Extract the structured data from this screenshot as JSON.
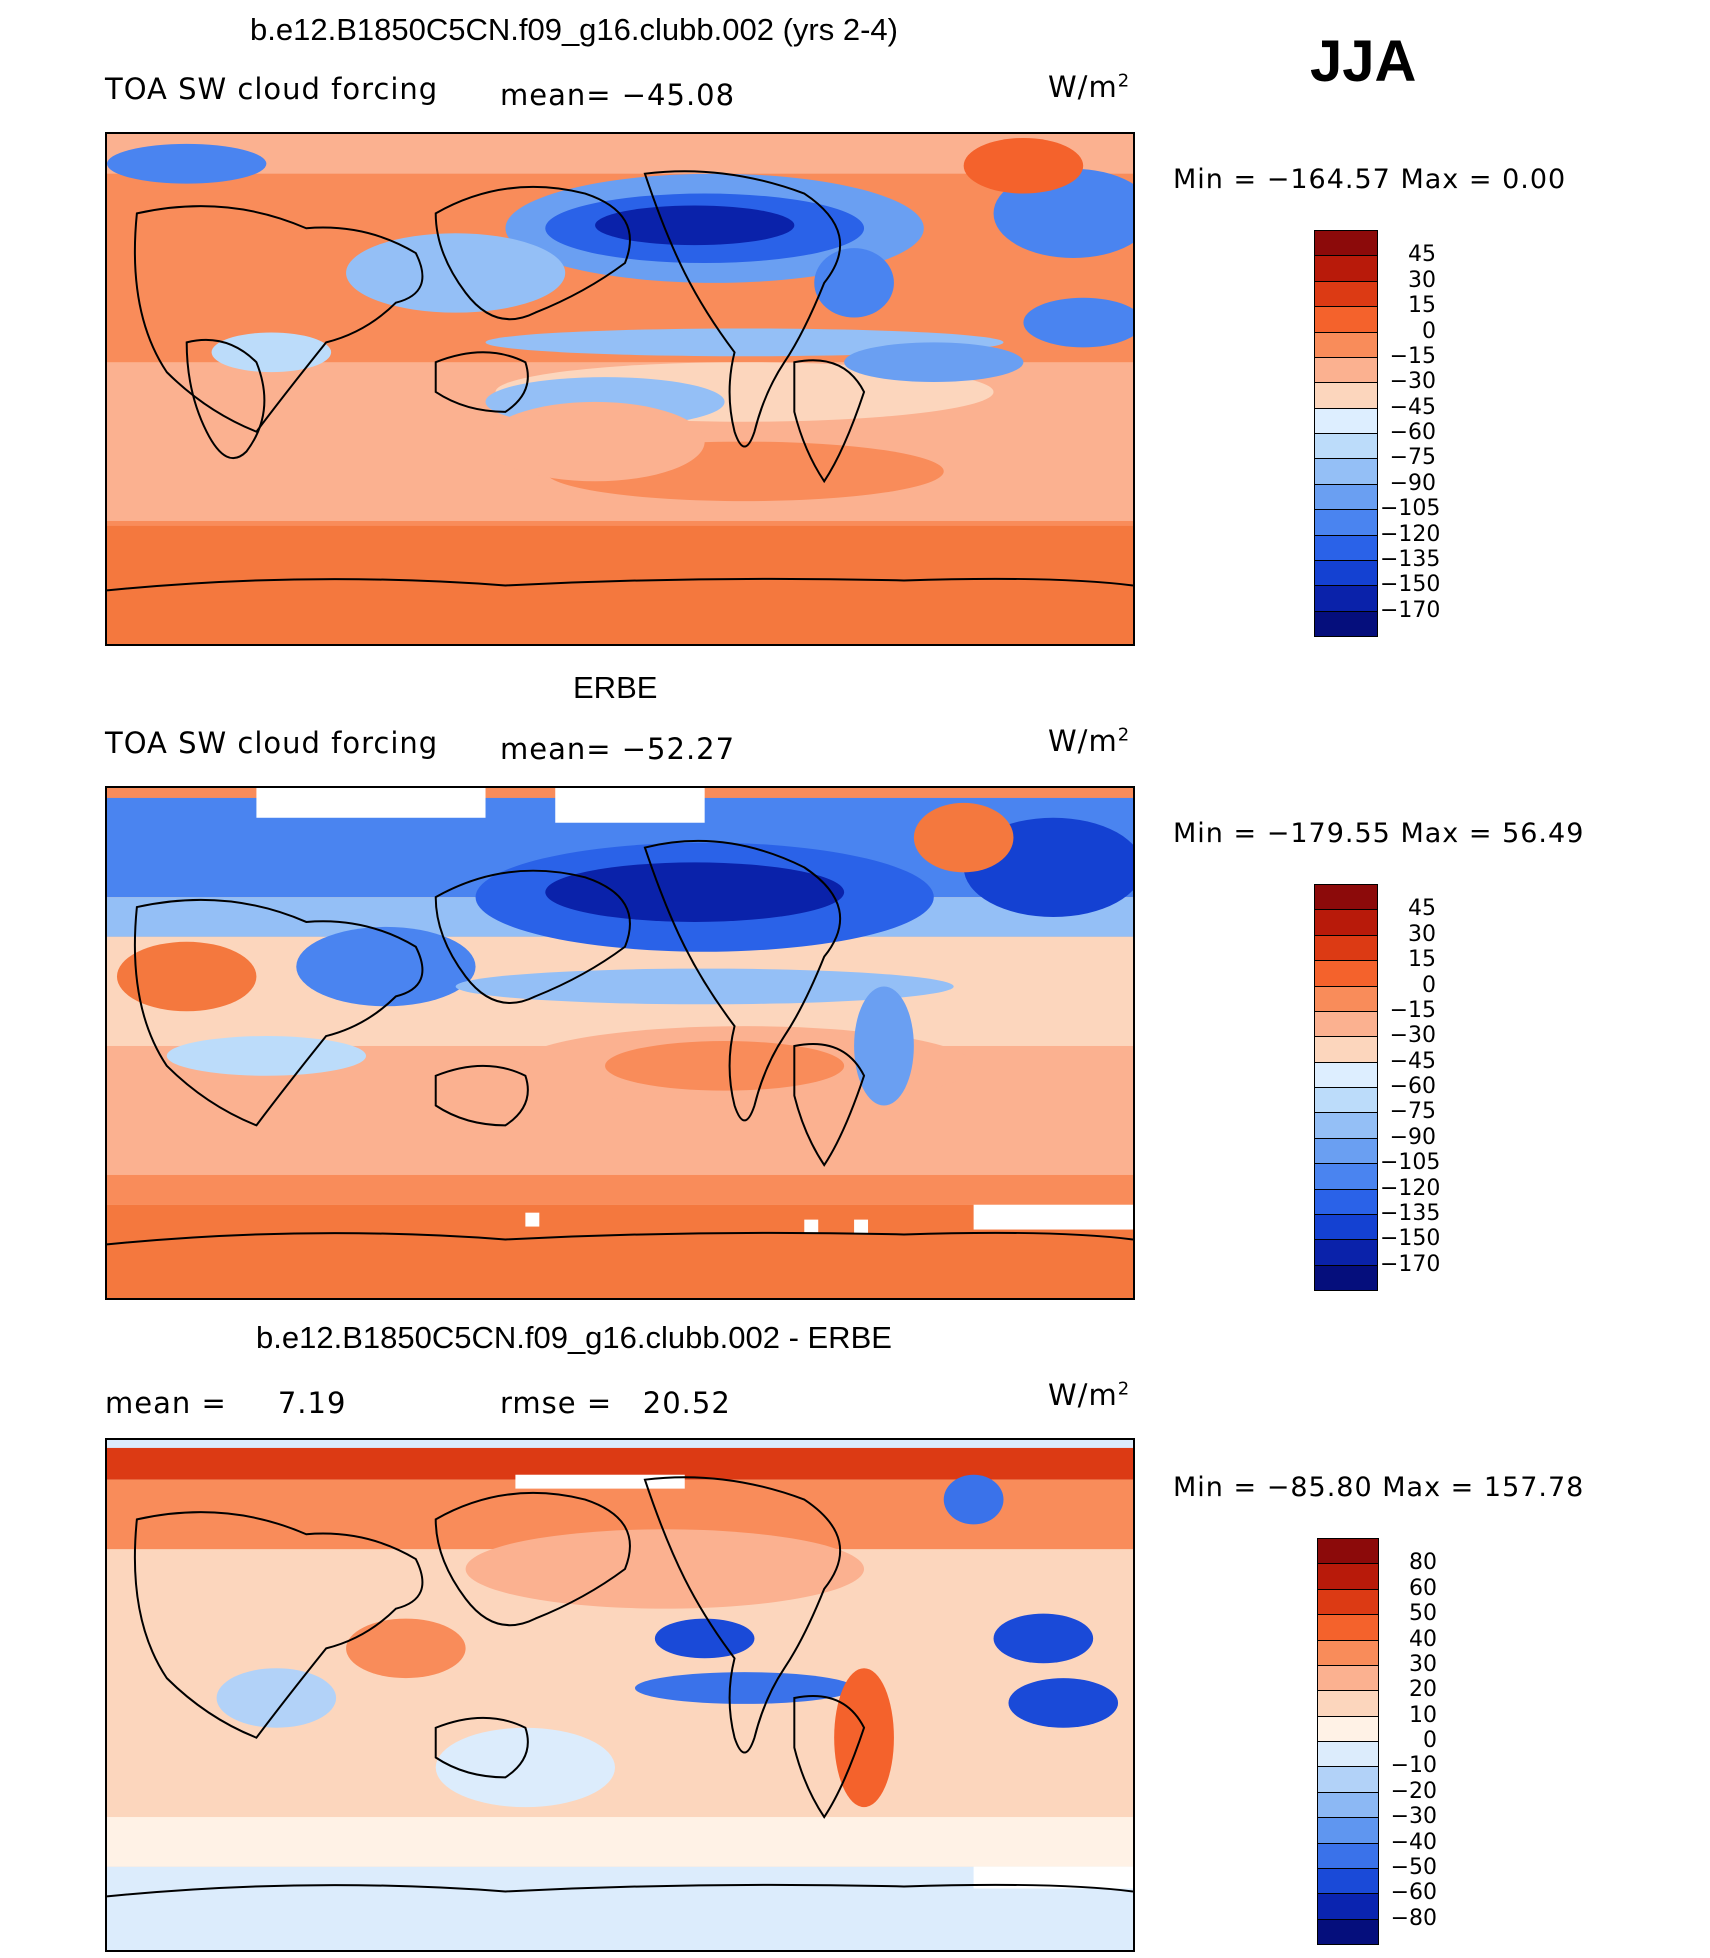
{
  "season": "JJA",
  "units_prefix": "W/m",
  "units_power": "2",
  "panels": [
    {
      "id": "model",
      "title": "b.e12.B1850C5CN.f09_g16.clubb.002 (yrs 2-4)",
      "left_label": "TOA SW cloud forcing",
      "center_label": "mean= −45.08",
      "min_label": "Min",
      "min_value": "−164.57",
      "max_label": "Max",
      "max_value": "0.00",
      "colorbar_colors": [
        "#8c0a0a",
        "#b81a0a",
        "#dc3a14",
        "#f4622c",
        "#f98c5a",
        "#fbb190",
        "#fcd6bd",
        "#ddeeff",
        "#bcdcfa",
        "#94bff6",
        "#6a9ff2",
        "#4a84f0",
        "#2a62e8",
        "#1441d2",
        "#0a22aa",
        "#050e7c"
      ],
      "colorbar_ticks": [
        "45",
        "30",
        "15",
        "0",
        "−15",
        "−30",
        "−45",
        "−60",
        "−75",
        "−90",
        "−105",
        "−120",
        "−135",
        "−150",
        "−170"
      ]
    },
    {
      "id": "obs",
      "title": "ERBE",
      "left_label": "TOA SW cloud forcing",
      "center_label": "mean= −52.27",
      "min_label": "Min",
      "min_value": "−179.55",
      "max_label": "Max",
      "max_value": "56.49",
      "colorbar_colors": [
        "#8c0a0a",
        "#b81a0a",
        "#dc3a14",
        "#f4622c",
        "#f98c5a",
        "#fbb190",
        "#fcd6bd",
        "#ddeeff",
        "#bcdcfa",
        "#94bff6",
        "#6a9ff2",
        "#4a84f0",
        "#2a62e8",
        "#1441d2",
        "#0a22aa",
        "#050e7c"
      ],
      "colorbar_ticks": [
        "45",
        "30",
        "15",
        "0",
        "−15",
        "−30",
        "−45",
        "−60",
        "−75",
        "−90",
        "−105",
        "−120",
        "−135",
        "−150",
        "−170"
      ]
    },
    {
      "id": "diff",
      "title": "b.e12.B1850C5CN.f09_g16.clubb.002 - ERBE",
      "left_label": "mean =     7.19",
      "center_label": "rmse =   20.52",
      "min_label": "Min",
      "min_value": "−85.80",
      "max_label": "Max",
      "max_value": "157.78",
      "colorbar_colors": [
        "#8c0a0a",
        "#b81a0a",
        "#dc3a14",
        "#f4622c",
        "#f98c5a",
        "#fbb190",
        "#fcd6bd",
        "#fff2e6",
        "#dcecfc",
        "#b2d2f8",
        "#8cb8f4",
        "#5f96f0",
        "#3a72ea",
        "#1a4ad8",
        "#0a24b0",
        "#050e7c"
      ],
      "colorbar_ticks": [
        "80",
        "60",
        "50",
        "40",
        "30",
        "20",
        "10",
        "0",
        "−10",
        "−20",
        "−30",
        "−40",
        "−50",
        "−60",
        "−80"
      ]
    }
  ],
  "chart_data": {
    "type": "heatmap",
    "variable": "TOA SW cloud forcing",
    "season": "JJA",
    "units": "W/m2",
    "maps": [
      {
        "title": "b.e12.B1850C5CN.f09_g16.clubb.002 (yrs 2-4)",
        "mean": -45.08,
        "min": -164.57,
        "max": 0.0,
        "levels": [
          45,
          30,
          15,
          0,
          -15,
          -30,
          -45,
          -60,
          -75,
          -90,
          -105,
          -120,
          -135,
          -150,
          -170
        ]
      },
      {
        "title": "ERBE",
        "mean": -52.27,
        "min": -179.55,
        "max": 56.49,
        "levels": [
          45,
          30,
          15,
          0,
          -15,
          -30,
          -45,
          -60,
          -75,
          -90,
          -105,
          -120,
          -135,
          -150,
          -170
        ]
      },
      {
        "title": "b.e12.B1850C5CN.f09_g16.clubb.002 - ERBE",
        "mean": 7.19,
        "rmse": 20.52,
        "min": -85.8,
        "max": 157.78,
        "levels": [
          80,
          60,
          50,
          40,
          30,
          20,
          10,
          0,
          -10,
          -20,
          -30,
          -40,
          -50,
          -60,
          -80
        ]
      }
    ]
  }
}
